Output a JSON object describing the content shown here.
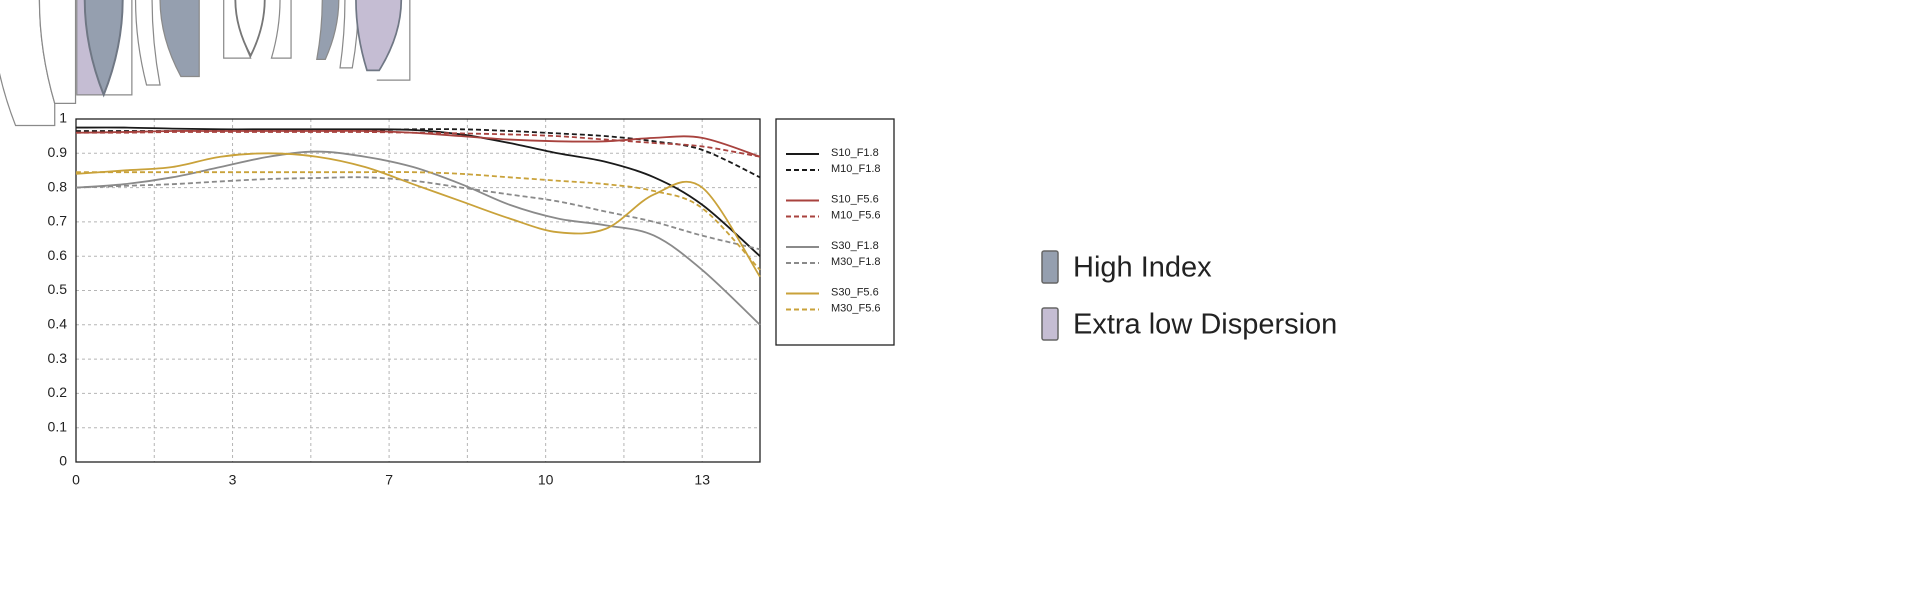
{
  "chart_data": {
    "type": "line",
    "x": [
      0,
      1,
      2,
      3,
      4,
      5,
      6,
      7,
      8,
      9,
      10,
      11,
      12,
      13,
      14.2
    ],
    "xlim": [
      0,
      14.2
    ],
    "xticks": [
      0,
      {
        "value": 3.25,
        "label": "3"
      },
      {
        "value": 6.5,
        "label": "7"
      },
      {
        "value": 9.75,
        "label": "10"
      },
      13
    ],
    "ylim": [
      0,
      1
    ],
    "yticks": [
      0,
      0.1,
      0.2,
      0.3,
      0.4,
      0.5,
      0.6,
      0.7,
      0.8,
      0.9,
      1
    ],
    "grid": true,
    "legend": "right",
    "series": [
      {
        "name": "S10_F1.8",
        "color": "#1a1a1a",
        "dash": false,
        "values": [
          0.975,
          0.975,
          0.972,
          0.97,
          0.97,
          0.97,
          0.97,
          0.968,
          0.955,
          0.93,
          0.9,
          0.875,
          0.83,
          0.75,
          0.6
        ]
      },
      {
        "name": "M10_F1.8",
        "color": "#1a1a1a",
        "dash": true,
        "values": [
          0.965,
          0.965,
          0.965,
          0.965,
          0.965,
          0.965,
          0.967,
          0.97,
          0.97,
          0.965,
          0.958,
          0.95,
          0.935,
          0.91,
          0.83
        ]
      },
      {
        "name": "S10_F5.6",
        "color": "#a8423e",
        "dash": false,
        "values": [
          0.96,
          0.962,
          0.965,
          0.965,
          0.965,
          0.965,
          0.965,
          0.96,
          0.95,
          0.94,
          0.935,
          0.935,
          0.945,
          0.945,
          0.89
        ]
      },
      {
        "name": "M10_F5.6",
        "color": "#a8423e",
        "dash": true,
        "values": [
          0.96,
          0.96,
          0.962,
          0.962,
          0.962,
          0.962,
          0.962,
          0.96,
          0.958,
          0.955,
          0.95,
          0.94,
          0.93,
          0.92,
          0.89
        ]
      },
      {
        "name": "S30_F1.8",
        "color": "#8a8a8a",
        "dash": false,
        "values": [
          0.8,
          0.81,
          0.83,
          0.86,
          0.89,
          0.905,
          0.89,
          0.86,
          0.81,
          0.75,
          0.71,
          0.69,
          0.66,
          0.56,
          0.4
        ]
      },
      {
        "name": "M30_F1.8",
        "color": "#8a8a8a",
        "dash": true,
        "values": [
          0.8,
          0.805,
          0.81,
          0.818,
          0.825,
          0.828,
          0.83,
          0.82,
          0.8,
          0.78,
          0.76,
          0.73,
          0.7,
          0.66,
          0.62
        ]
      },
      {
        "name": "S30_F5.6",
        "color": "#c9a23a",
        "dash": false,
        "values": [
          0.84,
          0.85,
          0.86,
          0.89,
          0.9,
          0.89,
          0.86,
          0.81,
          0.76,
          0.71,
          0.67,
          0.68,
          0.78,
          0.8,
          0.54
        ]
      },
      {
        "name": "M30_F5.6",
        "color": "#c9a23a",
        "dash": true,
        "values": [
          0.845,
          0.845,
          0.845,
          0.845,
          0.845,
          0.845,
          0.845,
          0.845,
          0.84,
          0.83,
          0.82,
          0.81,
          0.79,
          0.74,
          0.56
        ]
      }
    ]
  },
  "lens_legend": [
    {
      "label": "High Index",
      "color": "#959faf"
    },
    {
      "label": "Extra low Dispersion",
      "color": "#c5bdd3"
    }
  ]
}
